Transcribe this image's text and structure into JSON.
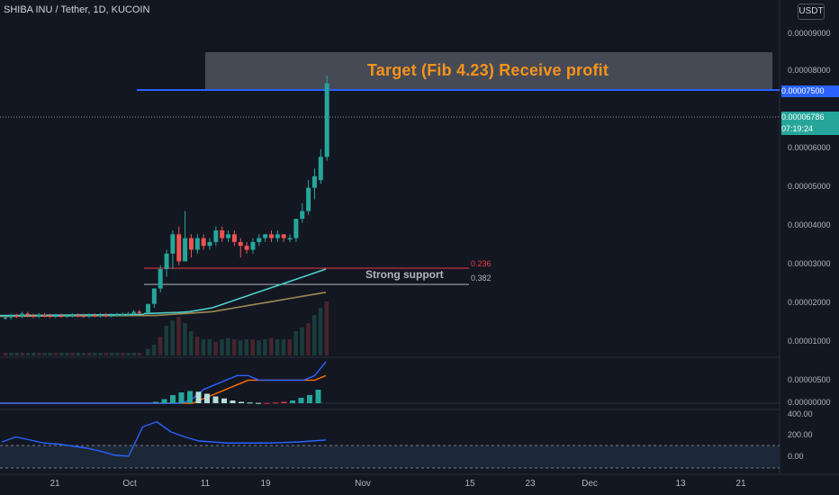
{
  "header": {
    "symbol_title": "SHIBA INU / Tether, 1D, KUCOIN",
    "currency": "USDT"
  },
  "colors": {
    "background": "#131722",
    "up": "#26a69a",
    "down": "#ef5350",
    "target_line": "#2962ff",
    "target_text": "#f7931a",
    "ma_fast": "#4dd0c9",
    "ma_slow": "#9e8a55",
    "macd": "#2962ff",
    "signal": "#ff6d00",
    "cci": "#2962ff"
  },
  "annotations": {
    "target_label": "Target (Fib 4.23) Receive profit",
    "support_label": "Strong support",
    "fib_236": "0.236",
    "fib_382": "0.382"
  },
  "price_scale": {
    "ticks": [
      "0.00009000",
      "0.00008000",
      "0.00006000",
      "0.00005000",
      "0.00004000",
      "0.00003000",
      "0.00002000",
      "0.00001000"
    ],
    "target_label": "0.00007500",
    "current_price": "0.00006786",
    "countdown": "07:19:24"
  },
  "indicator_scales": {
    "macd_ticks": [
      "0.00000500",
      "0.00000000"
    ],
    "cci_ticks": [
      "400.00",
      "200.00",
      "0.00"
    ]
  },
  "time_axis": [
    "21",
    "Oct",
    "11",
    "19",
    "Nov",
    "15",
    "23",
    "Dec",
    "13",
    "21"
  ],
  "chart_data": {
    "type": "candlestick",
    "title": "SHIBA INU / Tether, 1D, KUCOIN",
    "ylim": [
      0,
      9.8e-06
    ],
    "price_levels": {
      "target": 7.5e-06,
      "fib_0_236": 2.8e-06,
      "fib_0_382": 2.4e-06
    },
    "candles_late_sept": {
      "note_free": true,
      "close": [
        7.5e-07,
        8e-07,
        7.8e-07,
        8.5e-07,
        8e-07,
        7.8e-07,
        8.2e-07,
        8e-07,
        7.8e-07,
        8e-07,
        7.9e-07,
        8e-07,
        8.1e-07,
        8e-07,
        7.9e-07,
        8.1e-07,
        8e-07,
        8.2e-07,
        8e-07,
        8.1e-07,
        8.2e-07,
        8.3e-07,
        8.5e-07,
        9e-07,
        8.8e-07
      ]
    },
    "candles_oct": [
      {
        "date": "Oct 2",
        "o": 8.8e-07,
        "h": 1.1e-06,
        "l": 8.5e-07,
        "c": 1.1e-06
      },
      {
        "date": "Oct 3",
        "o": 1.1e-06,
        "h": 1.5e-06,
        "l": 1e-06,
        "c": 1.5e-06
      },
      {
        "date": "Oct 4",
        "o": 1.5e-06,
        "h": 2.1e-06,
        "l": 1.4e-06,
        "c": 2e-06
      },
      {
        "date": "Oct 5",
        "o": 2e-06,
        "h": 2.5e-06,
        "l": 1.8e-06,
        "c": 2.4e-06
      },
      {
        "date": "Oct 6",
        "o": 2.4e-06,
        "h": 3e-06,
        "l": 2e-06,
        "c": 2.9e-06
      },
      {
        "date": "Oct 7",
        "o": 2.9e-06,
        "h": 3.1e-06,
        "l": 2.1e-06,
        "c": 2.2e-06
      },
      {
        "date": "Oct 8",
        "o": 2.2e-06,
        "h": 3.5e-06,
        "l": 2.2e-06,
        "c": 2.8e-06
      },
      {
        "date": "Oct 9",
        "o": 2.8e-06,
        "h": 2.9e-06,
        "l": 2.3e-06,
        "c": 2.5e-06
      },
      {
        "date": "Oct 10",
        "o": 2.5e-06,
        "h": 2.9e-06,
        "l": 2.4e-06,
        "c": 2.8e-06
      },
      {
        "date": "Oct 11",
        "o": 2.8e-06,
        "h": 2.9e-06,
        "l": 2.5e-06,
        "c": 2.6e-06
      },
      {
        "date": "Oct 12",
        "o": 2.6e-06,
        "h": 2.8e-06,
        "l": 2.5e-06,
        "c": 2.7e-06
      },
      {
        "date": "Oct 13",
        "o": 2.7e-06,
        "h": 3.1e-06,
        "l": 2.6e-06,
        "c": 3e-06
      },
      {
        "date": "Oct 14",
        "o": 3e-06,
        "h": 3.1e-06,
        "l": 2.7e-06,
        "c": 2.8e-06
      },
      {
        "date": "Oct 15",
        "o": 2.8e-06,
        "h": 3e-06,
        "l": 2.7e-06,
        "c": 2.9e-06
      },
      {
        "date": "Oct 16",
        "o": 2.9e-06,
        "h": 3e-06,
        "l": 2.6e-06,
        "c": 2.7e-06
      },
      {
        "date": "Oct 17",
        "o": 2.7e-06,
        "h": 2.8e-06,
        "l": 2.3e-06,
        "c": 2.6e-06
      },
      {
        "date": "Oct 18",
        "o": 2.6e-06,
        "h": 2.7e-06,
        "l": 2.4e-06,
        "c": 2.5e-06
      },
      {
        "date": "Oct 19",
        "o": 2.5e-06,
        "h": 2.8e-06,
        "l": 2.4e-06,
        "c": 2.7e-06
      },
      {
        "date": "Oct 20",
        "o": 2.7e-06,
        "h": 2.9e-06,
        "l": 2.6e-06,
        "c": 2.8e-06
      },
      {
        "date": "Oct 21",
        "o": 2.8e-06,
        "h": 2.9e-06,
        "l": 2.7e-06,
        "c": 2.9e-06
      },
      {
        "date": "Oct 22",
        "o": 2.9e-06,
        "h": 3e-06,
        "l": 2.7e-06,
        "c": 2.8e-06
      },
      {
        "date": "Oct 23",
        "o": 2.8e-06,
        "h": 3e-06,
        "l": 2.7e-06,
        "c": 2.9e-06
      },
      {
        "date": "Oct 24",
        "o": 2.9e-06,
        "h": 2.9e-06,
        "l": 2.7e-06,
        "c": 2.8e-06
      },
      {
        "date": "Oct 25",
        "o": 2.8e-06,
        "h": 2.9e-06,
        "l": 2.7e-06,
        "c": 2.8e-06
      },
      {
        "date": "Oct 26",
        "o": 2.8e-06,
        "h": 3.3e-06,
        "l": 2.7e-06,
        "c": 3.3e-06
      },
      {
        "date": "Oct 27",
        "o": 3.3e-06,
        "h": 3.7e-06,
        "l": 3.2e-06,
        "c": 3.5e-06
      },
      {
        "date": "Oct 28",
        "o": 3.5e-06,
        "h": 4.3e-06,
        "l": 3.4e-06,
        "c": 4.1e-06
      },
      {
        "date": "Oct 29",
        "o": 4.1e-06,
        "h": 4.6e-06,
        "l": 3.8e-06,
        "c": 4.4e-06
      },
      {
        "date": "Oct 30",
        "o": 4.3e-06,
        "h": 5.1e-06,
        "l": 4.2e-06,
        "c": 4.9e-06
      },
      {
        "date": "Oct 31",
        "o": 4.9e-06,
        "h": 7e-06,
        "l": 4.8e-06,
        "c": 6.8e-06
      }
    ],
    "volume_relative": [
      0.05,
      0.05,
      0.05,
      0.05,
      0.05,
      0.05,
      0.05,
      0.05,
      0.05,
      0.05,
      0.05,
      0.05,
      0.05,
      0.05,
      0.05,
      0.05,
      0.05,
      0.05,
      0.05,
      0.05,
      0.05,
      0.05,
      0.05,
      0.05,
      0.05,
      0.12,
      0.2,
      0.35,
      0.55,
      0.65,
      0.72,
      0.6,
      0.45,
      0.35,
      0.3,
      0.3,
      0.25,
      0.3,
      0.32,
      0.3,
      0.28,
      0.3,
      0.3,
      0.28,
      0.3,
      0.32,
      0.3,
      0.3,
      0.3,
      0.45,
      0.52,
      0.6,
      0.75,
      0.88,
      1.0
    ],
    "ma_fast": [
      8.5e-07,
      8.6e-07,
      8.7e-07,
      8.8e-07,
      9e-07,
      9.5e-07,
      1e-06,
      1.1e-06,
      1.2e-06,
      1.3e-06,
      1.4e-06,
      1.5e-06,
      1.6e-06,
      1.7e-06,
      1.8e-06,
      1.9e-06,
      2e-06
    ],
    "ma_slow": [
      8e-07,
      8e-07,
      8.2e-07,
      8.4e-07,
      8.6e-07,
      8.8e-07,
      9e-07,
      9.5e-07,
      1e-06,
      1.05e-06,
      1.1e-06,
      1.15e-06,
      1.2e-06,
      1.25e-06,
      1.3e-06,
      1.35e-06,
      1.4e-06
    ],
    "macd": [
      0.0,
      0.0,
      0.0,
      0.0,
      0.0,
      0.0,
      1e-07,
      3e-07,
      4e-07,
      5e-07,
      6e-07,
      6e-07,
      5e-07,
      5e-07,
      5e-07,
      5e-07,
      5e-07,
      6e-07,
      9e-07
    ],
    "signal": [
      0.0,
      0.0,
      0.0,
      0.0,
      0.0,
      0.0,
      0.0,
      1e-07,
      2e-07,
      3e-07,
      4e-07,
      5e-07,
      5e-07,
      5e-07,
      5e-07,
      5e-07,
      5e-07,
      5e-07,
      6e-07
    ],
    "cci": [
      150,
      200,
      170,
      140,
      130,
      110,
      90,
      60,
      20,
      10,
      300,
      350,
      250,
      200,
      160,
      150,
      140,
      140,
      140,
      140,
      145,
      150,
      160,
      170
    ]
  }
}
